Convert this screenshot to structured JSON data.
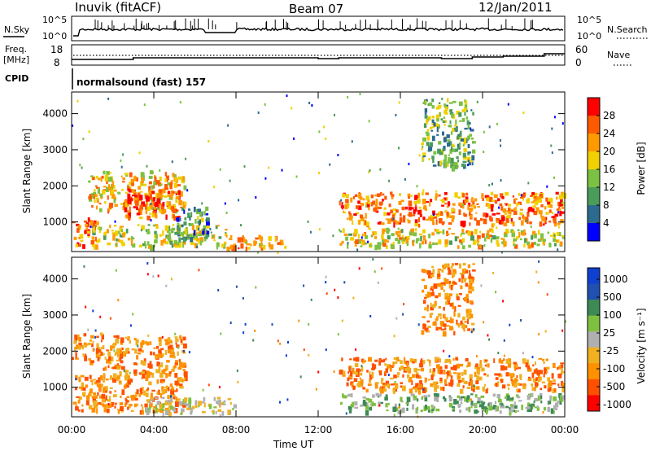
{
  "header": {
    "station": "Inuvik (fitACF)",
    "beam": "Beam 07",
    "date": "12/Jan/2011"
  },
  "top_panels": {
    "nsky_label": "N.Sky",
    "nsearch_label": "N.Search",
    "nsky_ticks": [
      "10^5",
      "10^0"
    ],
    "nsearch_ticks": [
      "10^5",
      "10^0"
    ],
    "freq_label_line1": "Freq.",
    "freq_label_line2": "[MHz]",
    "freq_ticks": [
      "18",
      "8"
    ],
    "nave_label": "Nave",
    "nave_ticks": [
      "60",
      "0"
    ],
    "cpid_label": "CPID",
    "cpid_text": "normalsound (fast) 157"
  },
  "colors": {
    "power_scale": [
      "#0000ff",
      "#2c6b8f",
      "#4a9c5a",
      "#7cc142",
      "#f0d000",
      "#ff9900",
      "#ff5a00",
      "#ff0000"
    ],
    "velocity_scale": [
      "#ff0000",
      "#ff5000",
      "#ff9000",
      "#f0b020",
      "#b0b0b0",
      "#80c040",
      "#3d8a55",
      "#2050b0",
      "#1040d0"
    ]
  },
  "chart_data": [
    {
      "type": "heatmap",
      "title": "",
      "xlabel": "Time UT",
      "ylabel": "Slant Range [km]",
      "xlim": [
        "00:00",
        "24:00"
      ],
      "ylim": [
        180,
        4600
      ],
      "x_ticks": [
        "00:00",
        "04:00",
        "08:00",
        "12:00",
        "16:00",
        "20:00",
        "00:00"
      ],
      "y_ticks": [
        1000,
        2000,
        3000,
        4000
      ],
      "colorbar": {
        "label": "Power [dB]",
        "range": [
          0,
          32
        ],
        "tick_values": [
          4,
          8,
          12,
          16,
          20,
          24,
          28
        ],
        "tick_labels": [
          "4",
          "8",
          "12",
          "16",
          "20",
          "24",
          "28"
        ]
      },
      "scatter_bands": [
        {
          "t_start": 0.0,
          "t_end": 1.2,
          "r_min": 300,
          "r_max": 1100,
          "level": 26
        },
        {
          "t_start": 0.8,
          "t_end": 5.5,
          "r_min": 1300,
          "r_max": 2400,
          "level": 22
        },
        {
          "t_start": 2.5,
          "t_end": 5.2,
          "r_min": 1100,
          "r_max": 1900,
          "level": 28
        },
        {
          "t_start": 1.0,
          "t_end": 7.5,
          "r_min": 300,
          "r_max": 900,
          "level": 18
        },
        {
          "t_start": 5.0,
          "t_end": 6.6,
          "r_min": 500,
          "r_max": 1400,
          "level": 12
        },
        {
          "t_start": 7.5,
          "t_end": 10.5,
          "r_min": 250,
          "r_max": 600,
          "level": 24
        },
        {
          "t_start": 13.0,
          "t_end": 23.9,
          "r_min": 900,
          "r_max": 1800,
          "level": 26
        },
        {
          "t_start": 13.0,
          "t_end": 23.9,
          "r_min": 300,
          "r_max": 800,
          "level": 20
        },
        {
          "t_start": 17.0,
          "t_end": 19.5,
          "r_min": 2500,
          "r_max": 4400,
          "level": 14
        }
      ]
    },
    {
      "type": "heatmap",
      "title": "",
      "xlabel": "Time UT",
      "ylabel": "Slant Range [km]",
      "xlim": [
        "00:00",
        "24:00"
      ],
      "ylim": [
        180,
        4600
      ],
      "x_ticks": [
        "00:00",
        "04:00",
        "08:00",
        "12:00",
        "16:00",
        "20:00",
        "00:00"
      ],
      "y_ticks": [
        1000,
        2000,
        3000,
        4000
      ],
      "colorbar": {
        "label": "Velocity [m s⁻¹]",
        "tick_labels": [
          "1000",
          "500",
          "100",
          "25",
          "-25",
          "-100",
          "-500",
          "-1000"
        ]
      },
      "scatter_bands": [
        {
          "t_start": 0.0,
          "t_end": 1.5,
          "r_min": 1700,
          "r_max": 2500,
          "level": "-100"
        },
        {
          "t_start": 0.0,
          "t_end": 5.5,
          "r_min": 300,
          "r_max": 1300,
          "level": "-100"
        },
        {
          "t_start": 1.5,
          "t_end": 5.5,
          "r_min": 1300,
          "r_max": 2400,
          "level": "-100"
        },
        {
          "t_start": 3.5,
          "t_end": 8.0,
          "r_min": 250,
          "r_max": 700,
          "level": "25"
        },
        {
          "t_start": 13.0,
          "t_end": 23.9,
          "r_min": 900,
          "r_max": 1800,
          "level": "-100"
        },
        {
          "t_start": 13.0,
          "t_end": 23.9,
          "r_min": 300,
          "r_max": 800,
          "level": "100"
        },
        {
          "t_start": 17.0,
          "t_end": 19.5,
          "r_min": 2500,
          "r_max": 4400,
          "level": "-100"
        }
      ]
    }
  ]
}
